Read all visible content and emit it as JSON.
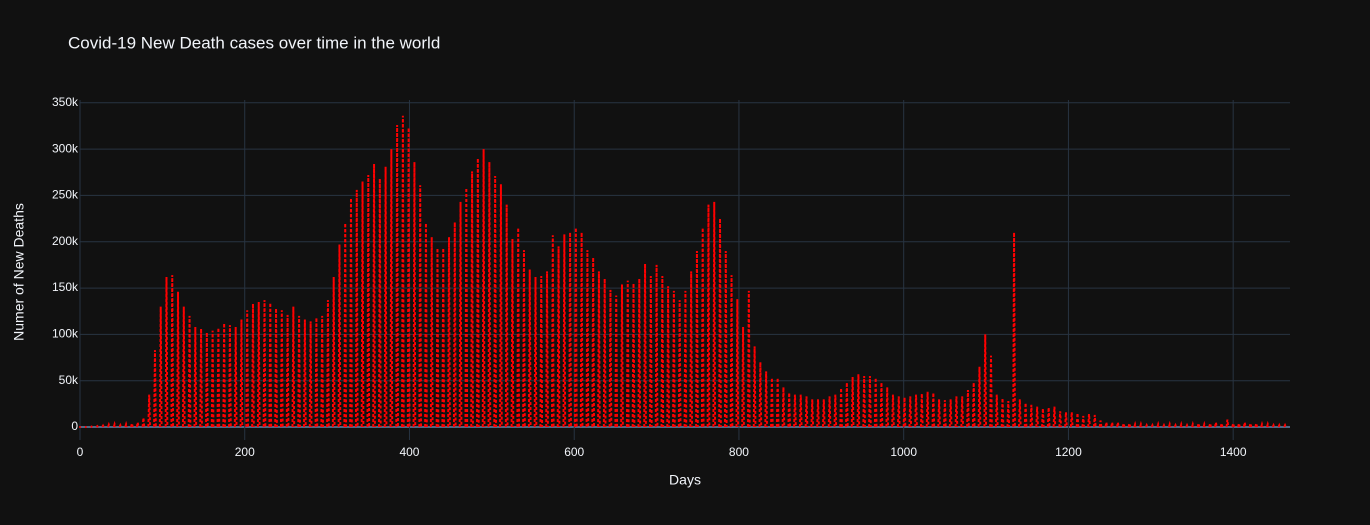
{
  "chart_data": {
    "type": "line",
    "title": "Covid-19 New Death cases over time in the world",
    "x_label": "Days",
    "y_label": "Numer of New Deaths",
    "color": "#ff0000",
    "dash": true,
    "grid": true,
    "xlim": [
      0,
      1469
    ],
    "ylim": [
      -14000,
      353000
    ],
    "xticks": [
      0,
      200,
      400,
      600,
      800,
      1000,
      1200,
      1400
    ],
    "yticks": [
      0,
      {
        "value": 50000,
        "label": "50k"
      },
      {
        "value": 100000,
        "label": "100k"
      },
      {
        "value": 150000,
        "label": "150k"
      },
      {
        "value": 200000,
        "label": "200k"
      },
      {
        "value": 250000,
        "label": "250k"
      },
      {
        "value": 300000,
        "label": "300k"
      },
      {
        "value": 350000,
        "label": "350k"
      }
    ],
    "x": [
      0,
      7,
      14,
      21,
      28,
      35,
      42,
      49,
      56,
      63,
      70,
      77,
      84,
      91,
      98,
      105,
      112,
      119,
      126,
      133,
      140,
      147,
      154,
      161,
      168,
      175,
      182,
      189,
      196,
      203,
      210,
      217,
      224,
      231,
      238,
      245,
      252,
      259,
      266,
      273,
      280,
      287,
      294,
      301,
      308,
      315,
      322,
      329,
      336,
      343,
      350,
      357,
      364,
      371,
      378,
      385,
      392,
      399,
      406,
      413,
      420,
      427,
      434,
      441,
      448,
      455,
      462,
      469,
      476,
      483,
      490,
      497,
      504,
      511,
      518,
      525,
      532,
      539,
      546,
      553,
      560,
      567,
      574,
      581,
      588,
      595,
      602,
      609,
      616,
      623,
      630,
      637,
      644,
      651,
      658,
      665,
      672,
      679,
      686,
      693,
      700,
      707,
      714,
      721,
      728,
      735,
      742,
      749,
      756,
      763,
      770,
      777,
      784,
      791,
      798,
      805,
      812,
      819,
      826,
      833,
      840,
      847,
      854,
      861,
      868,
      875,
      882,
      889,
      896,
      903,
      910,
      917,
      924,
      931,
      938,
      945,
      952,
      959,
      966,
      973,
      980,
      987,
      994,
      1001,
      1008,
      1015,
      1022,
      1029,
      1036,
      1043,
      1050,
      1057,
      1064,
      1071,
      1078,
      1085,
      1092,
      1099,
      1106,
      1113,
      1120,
      1127,
      1134,
      1141,
      1148,
      1155,
      1162,
      1169,
      1176,
      1183,
      1190,
      1197,
      1204,
      1211,
      1218,
      1225,
      1232,
      1239,
      1246,
      1253,
      1260,
      1267,
      1274,
      1281,
      1288,
      1295,
      1302,
      1309,
      1316,
      1323,
      1330,
      1337,
      1344,
      1351,
      1358,
      1365,
      1372,
      1379,
      1386,
      1393,
      1400,
      1407,
      1414,
      1421,
      1428,
      1435,
      1442,
      1449,
      1456,
      1463
    ],
    "values": [
      0,
      0,
      500,
      1000,
      1500,
      2500,
      3000,
      2000,
      3000,
      4000,
      5000,
      10000,
      35000,
      83000,
      130000,
      162000,
      164000,
      146000,
      130000,
      120000,
      108000,
      106000,
      102000,
      104000,
      107000,
      112000,
      110000,
      108000,
      116000,
      126000,
      133000,
      135000,
      137000,
      134000,
      128000,
      126000,
      121000,
      130000,
      120000,
      116000,
      114000,
      118000,
      120000,
      137000,
      162000,
      197000,
      220000,
      247000,
      256000,
      265000,
      272000,
      284000,
      268000,
      281000,
      300000,
      326000,
      336000,
      323000,
      286000,
      261000,
      220000,
      205000,
      193000,
      193000,
      205000,
      221000,
      243000,
      258000,
      276000,
      290000,
      300000,
      286000,
      271000,
      262000,
      240000,
      203000,
      215000,
      191000,
      170000,
      162000,
      163000,
      168000,
      207000,
      195000,
      208000,
      210000,
      215000,
      210000,
      191000,
      183000,
      168000,
      160000,
      148000,
      142000,
      154000,
      158000,
      155000,
      160000,
      176000,
      163000,
      175000,
      163000,
      152000,
      147000,
      137000,
      147000,
      168000,
      190000,
      215000,
      240000,
      243000,
      225000,
      190000,
      164000,
      138000,
      108000,
      147000,
      87000,
      70000,
      60000,
      53000,
      53000,
      43000,
      37000,
      35000,
      35000,
      33000,
      30000,
      30000,
      30000,
      33000,
      35000,
      42000,
      48000,
      54000,
      57000,
      55000,
      55000,
      53000,
      48000,
      43000,
      35000,
      33000,
      32000,
      33000,
      35000,
      36000,
      38000,
      37000,
      30000,
      29000,
      30000,
      33000,
      33000,
      40000,
      48000,
      65000,
      100000,
      77000,
      35000,
      31000,
      28000,
      210000,
      30000,
      26000,
      24000,
      22000,
      20000,
      21000,
      22000,
      17000,
      16000,
      16000,
      15000,
      12000,
      14000,
      13000,
      7000,
      5000,
      5000,
      5000,
      4000,
      4000,
      3000,
      3000,
      2000,
      2000,
      3000,
      2000,
      3000,
      2000,
      3000,
      2000,
      3000,
      4000,
      3000,
      4000,
      5000,
      4000,
      8000,
      4000,
      4000,
      5000,
      4000,
      4000,
      3000,
      3000,
      2000,
      2000,
      2000
    ]
  }
}
